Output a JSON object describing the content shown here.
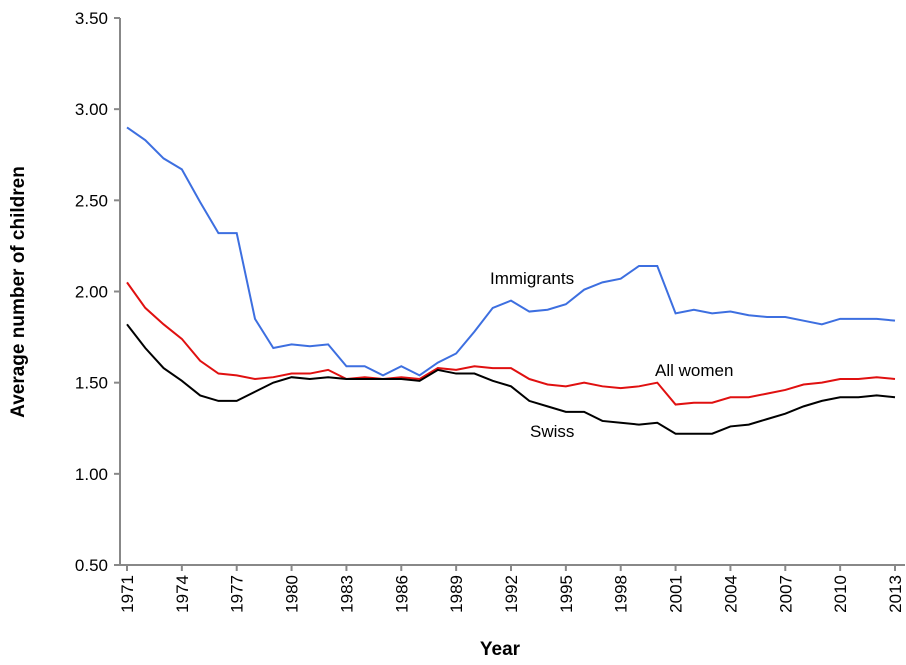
{
  "chart_data": {
    "type": "line",
    "x_label": "Year",
    "y_label": "Average number of children",
    "x": [
      1971,
      1972,
      1973,
      1974,
      1975,
      1976,
      1977,
      1978,
      1979,
      1980,
      1981,
      1982,
      1983,
      1984,
      1985,
      1986,
      1987,
      1988,
      1989,
      1990,
      1991,
      1992,
      1993,
      1994,
      1995,
      1996,
      1997,
      1998,
      1999,
      2000,
      2001,
      2002,
      2003,
      2004,
      2005,
      2006,
      2007,
      2008,
      2009,
      2010,
      2011,
      2012,
      2013
    ],
    "xlim": [
      1971,
      2013
    ],
    "xticks": [
      1971,
      1974,
      1977,
      1980,
      1983,
      1986,
      1989,
      1992,
      1995,
      1998,
      2001,
      2004,
      2007,
      2010,
      2013
    ],
    "ylim": [
      0.5,
      3.5
    ],
    "yticks": [
      {
        "value": 0.5,
        "label": "0.50"
      },
      {
        "value": 1,
        "label": "1.00"
      },
      {
        "value": 1.5,
        "label": "1.50"
      },
      {
        "value": 2,
        "label": "2.00"
      },
      {
        "value": 2.5,
        "label": "2.50"
      },
      {
        "value": 3,
        "label": "3.00"
      },
      {
        "value": 3.5,
        "label": "3.50"
      }
    ],
    "grid": false,
    "series": [
      {
        "name": "Immigrants",
        "color": "#3d6fe0",
        "values": [
          2.9,
          2.83,
          2.73,
          2.67,
          2.49,
          2.32,
          2.32,
          1.85,
          1.69,
          1.71,
          1.7,
          1.71,
          1.59,
          1.59,
          1.54,
          1.59,
          1.54,
          1.61,
          1.66,
          1.78,
          1.91,
          1.95,
          1.89,
          1.9,
          1.93,
          2.01,
          2.05,
          2.07,
          2.14,
          2.14,
          1.88,
          1.9,
          1.88,
          1.89,
          1.87,
          1.86,
          1.86,
          1.84,
          1.82,
          1.85,
          1.85,
          1.85,
          1.84
        ]
      },
      {
        "name": "All women",
        "color": "#e01010",
        "values": [
          2.05,
          1.91,
          1.82,
          1.74,
          1.62,
          1.55,
          1.54,
          1.52,
          1.53,
          1.55,
          1.55,
          1.57,
          1.52,
          1.53,
          1.52,
          1.53,
          1.52,
          1.58,
          1.57,
          1.59,
          1.58,
          1.58,
          1.52,
          1.49,
          1.48,
          1.5,
          1.48,
          1.47,
          1.48,
          1.5,
          1.38,
          1.39,
          1.39,
          1.42,
          1.42,
          1.44,
          1.46,
          1.49,
          1.5,
          1.52,
          1.52,
          1.53,
          1.52
        ]
      },
      {
        "name": "Swiss",
        "color": "#000000",
        "values": [
          1.82,
          1.69,
          1.58,
          1.51,
          1.43,
          1.4,
          1.4,
          1.45,
          1.5,
          1.53,
          1.52,
          1.53,
          1.52,
          1.52,
          1.52,
          1.52,
          1.51,
          1.57,
          1.55,
          1.55,
          1.51,
          1.48,
          1.4,
          1.37,
          1.34,
          1.34,
          1.29,
          1.28,
          1.27,
          1.28,
          1.22,
          1.22,
          1.22,
          1.26,
          1.27,
          1.3,
          1.33,
          1.37,
          1.4,
          1.42,
          1.42,
          1.43,
          1.42
        ]
      }
    ]
  }
}
